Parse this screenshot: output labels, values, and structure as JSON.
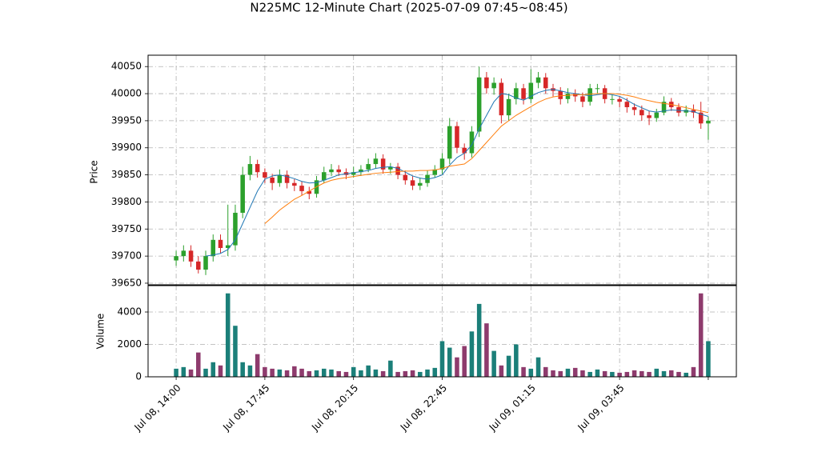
{
  "chart_data": {
    "type": "candlestick",
    "title": "N225MC 12-Minute Chart (2025-07-09 07:45~08:45)",
    "ylabel": "Price",
    "xlim": [
      -3.8,
      75.8
    ],
    "xticks": [
      {
        "value": 0,
        "label": "Jul 08, 14:00"
      },
      {
        "value": 12,
        "label": "Jul 08, 17:45"
      },
      {
        "value": 24,
        "label": "Jul 08, 20:15"
      },
      {
        "value": 36,
        "label": "Jul 08, 22:45"
      },
      {
        "value": 48,
        "label": "Jul 09, 01:15"
      },
      {
        "value": 60,
        "label": "Jul 09, 03:45"
      },
      {
        "value": 72
      }
    ],
    "ylim": [
      39647,
      40071
    ],
    "yticks": [
      39650,
      39700,
      39750,
      39800,
      39850,
      39900,
      39950,
      40000,
      40050
    ],
    "grid": true,
    "up_color": "#2ca02c",
    "down_color": "#d62728",
    "open": [
      39692,
      39700,
      39710,
      39690,
      39675,
      39700,
      39730,
      39715,
      39720,
      39780,
      39850,
      39870,
      39855,
      39845,
      39835,
      39850,
      39835,
      39830,
      39820,
      39815,
      39840,
      39855,
      39860,
      39855,
      39850,
      39855,
      39860,
      39870,
      39880,
      39860,
      39865,
      39850,
      39840,
      39830,
      39835,
      39850,
      39860,
      39880,
      39940,
      39900,
      39890,
      39930,
      40030,
      40010,
      40020,
      39960,
      39990,
      40010,
      39990,
      40020,
      40030,
      40010,
      40005,
      39990,
      40000,
      39995,
      39985,
      40010,
      40010,
      39990,
      39990,
      39985,
      39975,
      39970,
      39960,
      39955,
      39965,
      39985,
      39975,
      39965,
      39970,
      39965,
      39945
    ],
    "high": [
      39710,
      39720,
      39720,
      39700,
      39710,
      39740,
      39740,
      39795,
      39795,
      39865,
      39885,
      39878,
      39862,
      39852,
      39860,
      39858,
      39842,
      39838,
      39828,
      39848,
      39865,
      39870,
      39868,
      39862,
      39865,
      39868,
      39880,
      39890,
      39888,
      39872,
      39872,
      39858,
      39848,
      39845,
      39858,
      39868,
      39890,
      39955,
      39948,
      39908,
      39940,
      40050,
      40040,
      40030,
      40028,
      40000,
      40020,
      40018,
      40045,
      40040,
      40038,
      40018,
      40012,
      40010,
      40008,
      40002,
      40018,
      40018,
      40016,
      39998,
      39996,
      39992,
      39982,
      39978,
      39968,
      39972,
      39995,
      39992,
      39982,
      39978,
      39980,
      39985,
      39958
    ],
    "low": [
      39682,
      39690,
      39680,
      39668,
      39665,
      39690,
      39705,
      39700,
      39710,
      39770,
      39840,
      39845,
      39835,
      39822,
      39828,
      39825,
      39820,
      39812,
      39805,
      39808,
      39835,
      39848,
      39848,
      39842,
      39845,
      39848,
      39855,
      39862,
      39852,
      39852,
      39842,
      39832,
      39822,
      39822,
      39828,
      39845,
      39852,
      39870,
      39890,
      39878,
      39882,
      39920,
      40000,
      39998,
      39945,
      39950,
      39980,
      39980,
      39982,
      40010,
      40000,
      39995,
      39980,
      39982,
      39985,
      39975,
      39978,
      40000,
      39982,
      39980,
      39975,
      39965,
      39960,
      39950,
      39942,
      39948,
      39960,
      39968,
      39958,
      39958,
      39955,
      39935,
      39915
    ],
    "close": [
      39700,
      39710,
      39690,
      39675,
      39700,
      39730,
      39715,
      39720,
      39780,
      39850,
      39870,
      39855,
      39845,
      39835,
      39850,
      39835,
      39830,
      39820,
      39815,
      39840,
      39855,
      39860,
      39855,
      39850,
      39855,
      39860,
      39870,
      39880,
      39860,
      39865,
      39850,
      39840,
      39830,
      39835,
      39850,
      39860,
      39880,
      39940,
      39900,
      39890,
      39930,
      40030,
      40010,
      40020,
      39960,
      39990,
      40010,
      39990,
      40020,
      40030,
      40010,
      40005,
      39990,
      40000,
      39995,
      39985,
      40010,
      40010,
      39990,
      39990,
      39985,
      39975,
      39970,
      39960,
      39955,
      39965,
      39985,
      39975,
      39965,
      39970,
      39965,
      39945,
      39950
    ],
    "moving_averages": [
      {
        "color": "#1f77b4",
        "values": [
          null,
          null,
          null,
          null,
          39700,
          39702,
          39705,
          39712,
          39730,
          39760,
          39790,
          39820,
          39842,
          39848,
          39850,
          39847,
          39843,
          39838,
          39835,
          39836,
          39840,
          39845,
          39850,
          39852,
          39854,
          39856,
          39858,
          39862,
          39864,
          39865,
          39862,
          39855,
          39848,
          39844,
          39842,
          39845,
          39850,
          39868,
          39882,
          39890,
          39905,
          39935,
          39960,
          39985,
          40000,
          39998,
          39992,
          39988,
          39995,
          40002,
          40006,
          40008,
          40005,
          40002,
          40000,
          39998,
          39996,
          39998,
          40000,
          39998,
          39995,
          39988,
          39980,
          39974,
          39968,
          39966,
          39968,
          39970,
          39969,
          39968,
          39967,
          39962,
          39958
        ]
      },
      {
        "color": "#ff7f0e",
        "values": [
          null,
          null,
          null,
          null,
          null,
          null,
          null,
          null,
          null,
          null,
          null,
          null,
          39760,
          39772,
          39785,
          39795,
          39805,
          39812,
          39820,
          39828,
          39835,
          39840,
          39843,
          39845,
          39847,
          39849,
          39851,
          39853,
          39854,
          39855,
          39856,
          39857,
          39857,
          39858,
          39858,
          39859,
          39862,
          39866,
          39868,
          39870,
          39880,
          39895,
          39910,
          39925,
          39940,
          39950,
          39960,
          39968,
          39976,
          39984,
          39990,
          39994,
          39996,
          39997,
          39998,
          39998,
          39999,
          40000,
          40000,
          40000,
          39999,
          39997,
          39994,
          39990,
          39987,
          39984,
          39982,
          39980,
          39977,
          39974,
          39971,
          39968,
          39965
        ]
      }
    ],
    "volume": {
      "ylabel": "Volume",
      "ylim": [
        0,
        5630
      ],
      "yticks": [
        0,
        2000,
        4000
      ],
      "up_color": "#1b7f79",
      "down_color": "#8e3b6d",
      "values": [
        500,
        600,
        450,
        1500,
        500,
        900,
        700,
        5150,
        3150,
        900,
        700,
        1400,
        600,
        500,
        450,
        400,
        650,
        500,
        350,
        400,
        500,
        450,
        350,
        300,
        600,
        400,
        700,
        450,
        350,
        1000,
        300,
        350,
        400,
        300,
        450,
        550,
        2200,
        1800,
        1200,
        1900,
        2800,
        4500,
        3300,
        1600,
        700,
        1300,
        2000,
        600,
        500,
        1200,
        600,
        400,
        350,
        500,
        550,
        400,
        300,
        450,
        350,
        300,
        250,
        300,
        400,
        350,
        300,
        500,
        350,
        400,
        300,
        250,
        600,
        5150,
        2200
      ]
    }
  }
}
